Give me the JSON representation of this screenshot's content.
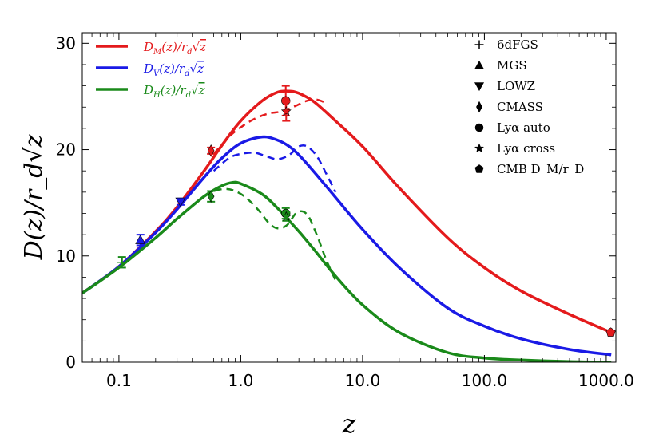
{
  "chart_data": {
    "type": "line",
    "xscale": "log",
    "xlim": [
      0.05,
      1200
    ],
    "ylim": [
      0,
      31
    ],
    "xlabel": "z",
    "ylabel": "D(z)/r_d√z",
    "xtick_values": [
      0.1,
      1,
      10,
      100,
      1000
    ],
    "xtick_labels": [
      "0.1",
      "1.0",
      "10.0",
      "100.0",
      "1000.0"
    ],
    "ytick_values": [
      0,
      10,
      20,
      30
    ],
    "ytick_labels": [
      "0",
      "10",
      "20",
      "30"
    ],
    "series": [
      {
        "name": "D_M(z)/r_d√z",
        "color": "#e41a1c",
        "style": "solid",
        "x": [
          0.05,
          0.1,
          0.2,
          0.3,
          0.5,
          0.7,
          1.0,
          1.5,
          2.0,
          2.5,
          3.0,
          4.0,
          6.0,
          10,
          20,
          50,
          100,
          200,
          500,
          1100
        ],
        "y": [
          6.5,
          9.0,
          12.3,
          14.6,
          18.0,
          20.4,
          22.7,
          24.6,
          25.4,
          25.5,
          25.3,
          24.5,
          22.7,
          20.3,
          16.4,
          11.7,
          8.9,
          6.7,
          4.5,
          2.8
        ]
      },
      {
        "name": "D_V(z)/r_d√z",
        "color": "#1a1ae6",
        "style": "solid",
        "x": [
          0.05,
          0.1,
          0.2,
          0.3,
          0.5,
          0.7,
          1.0,
          1.5,
          2.0,
          2.5,
          3.0,
          4.0,
          6.0,
          10,
          20,
          50,
          100,
          200,
          500,
          1100
        ],
        "y": [
          6.5,
          9.0,
          12.2,
          14.4,
          17.4,
          19.2,
          20.6,
          21.2,
          20.9,
          20.3,
          19.5,
          17.9,
          15.5,
          12.5,
          8.9,
          5.1,
          3.4,
          2.2,
          1.2,
          0.7
        ]
      },
      {
        "name": "D_H(z)/r_d√z",
        "color": "#1a8a1a",
        "style": "solid",
        "x": [
          0.05,
          0.1,
          0.2,
          0.3,
          0.5,
          0.7,
          0.85,
          1.0,
          1.5,
          2.0,
          3.0,
          4.0,
          6.0,
          10,
          20,
          50,
          100,
          200,
          500,
          1100
        ],
        "y": [
          6.5,
          8.9,
          11.7,
          13.5,
          15.6,
          16.6,
          16.9,
          16.8,
          15.8,
          14.5,
          12.3,
          10.6,
          8.1,
          5.4,
          2.8,
          0.9,
          0.4,
          0.2,
          0.05,
          0.0
        ]
      },
      {
        "name": "D_M model (dashed)",
        "color": "#e41a1c",
        "style": "dashed",
        "x": [
          0.6,
          0.8,
          1.0,
          1.3,
          1.7,
          2.2,
          2.8,
          3.5,
          4.2,
          5.0
        ],
        "y": [
          19.6,
          21.2,
          22.1,
          22.9,
          23.4,
          23.6,
          24.1,
          24.6,
          24.7,
          24.4
        ]
      },
      {
        "name": "D_V model (dashed)",
        "color": "#1a1ae6",
        "style": "dashed",
        "x": [
          0.6,
          0.8,
          1.0,
          1.3,
          1.6,
          2.0,
          2.5,
          3.0,
          3.5,
          4.2,
          5.0,
          6.0
        ],
        "y": [
          18.0,
          19.2,
          19.6,
          19.7,
          19.4,
          19.1,
          19.5,
          20.3,
          20.3,
          19.4,
          17.8,
          16.0
        ]
      },
      {
        "name": "D_H model (dashed)",
        "color": "#1a8a1a",
        "style": "dashed",
        "x": [
          0.5,
          0.6,
          0.75,
          0.9,
          1.1,
          1.4,
          1.7,
          2.0,
          2.4,
          2.9,
          3.5,
          4.2,
          5.0,
          6.0
        ],
        "y": [
          15.6,
          16.1,
          16.3,
          16.1,
          15.5,
          14.3,
          13.1,
          12.6,
          12.9,
          14.1,
          13.9,
          12.0,
          9.7,
          7.7
        ]
      }
    ],
    "points": [
      {
        "name": "6dFGS",
        "marker": "plus",
        "color": "#1a8a1a",
        "x": 0.106,
        "y": 9.4,
        "err": 0.5
      },
      {
        "name": "MGS",
        "marker": "triangle-up",
        "color": "#1a1ae6",
        "x": 0.15,
        "y": 11.5,
        "err": 0.5
      },
      {
        "name": "LOWZ",
        "marker": "triangle-down",
        "color": "#1a1ae6",
        "x": 0.32,
        "y": 15.1,
        "err": 0.3
      },
      {
        "name": "CMASS",
        "marker": "diamond",
        "color": "#e41a1c",
        "x": 0.57,
        "y": 19.9,
        "err": 0.3
      },
      {
        "name": "CMASS",
        "marker": "diamond",
        "color": "#1a8a1a",
        "x": 0.57,
        "y": 15.6,
        "err": 0.5
      },
      {
        "name": "Lyα auto",
        "marker": "circle",
        "color": "#e41a1c",
        "x": 2.34,
        "y": 24.6,
        "err": 1.4
      },
      {
        "name": "Lyα auto",
        "marker": "circle",
        "color": "#1a8a1a",
        "x": 2.34,
        "y": 14.0,
        "err": 0.5
      },
      {
        "name": "Lyα cross",
        "marker": "star",
        "color": "#e41a1c",
        "x": 2.36,
        "y": 23.6,
        "err": 0.9
      },
      {
        "name": "Lyα cross",
        "marker": "star",
        "color": "#1a8a1a",
        "x": 2.36,
        "y": 13.7,
        "err": 0.4
      },
      {
        "name": "CMB D_M/r_D",
        "marker": "pentagon",
        "color": "#e41a1c",
        "x": 1090,
        "y": 2.8,
        "err": 0.0
      }
    ],
    "legend_lines": {
      "placement": "top-left",
      "entries": [
        {
          "label_main": "D",
          "label_sub": "M",
          "label_rest": "(z)/r",
          "label_sub2": "d",
          "label_sqrt": "z",
          "color": "#e41a1c"
        },
        {
          "label_main": "D",
          "label_sub": "V",
          "label_rest": "(z)/r",
          "label_sub2": "d",
          "label_sqrt": "z",
          "color": "#1a1ae6"
        },
        {
          "label_main": "D",
          "label_sub": "H",
          "label_rest": "(z)/r",
          "label_sub2": "d",
          "label_sqrt": "z",
          "color": "#1a8a1a"
        }
      ]
    },
    "legend_markers": {
      "placement": "top-right",
      "entries": [
        {
          "marker": "plus",
          "label": "6dFGS"
        },
        {
          "marker": "triangle-up",
          "label": "MGS"
        },
        {
          "marker": "triangle-down",
          "label": "LOWZ"
        },
        {
          "marker": "diamond",
          "label": "CMASS"
        },
        {
          "marker": "circle",
          "label": "Lyα auto"
        },
        {
          "marker": "star",
          "label": "Lyα cross"
        },
        {
          "marker": "pentagon",
          "label": "CMB D_M/r_D"
        }
      ]
    }
  }
}
